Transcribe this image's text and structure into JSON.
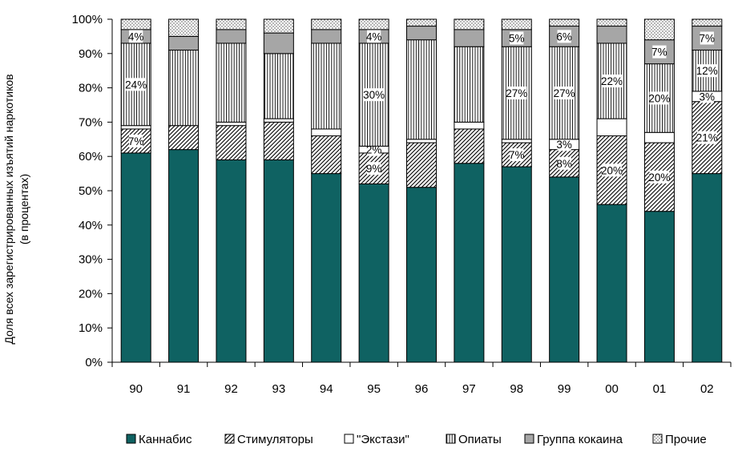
{
  "chart_data": {
    "type": "bar",
    "stacked": true,
    "ylabel_line1": "Доля всех зарегистрированных изъятий наркотиков",
    "ylabel_line2": "(в процентах)",
    "ylim": [
      0,
      100
    ],
    "yticks": [
      "0%",
      "10%",
      "20%",
      "30%",
      "40%",
      "50%",
      "60%",
      "70%",
      "80%",
      "90%",
      "100%"
    ],
    "categories": [
      "90",
      "91",
      "92",
      "93",
      "94",
      "95",
      "96",
      "97",
      "98",
      "99",
      "00",
      "01",
      "02"
    ],
    "legend_position": "bottom",
    "series": [
      {
        "name": "Каннабис",
        "pattern": "solid",
        "color": "#0f6262",
        "values": [
          61,
          62,
          59,
          59,
          55,
          52,
          51,
          58,
          57,
          54,
          46,
          44,
          55
        ],
        "labels": [
          "",
          "",
          "",
          "",
          "",
          "",
          "",
          "",
          "",
          "",
          "",
          "",
          ""
        ]
      },
      {
        "name": "Стимуляторы",
        "pattern": "diagonal",
        "values": [
          7,
          7,
          10,
          11,
          11,
          9,
          13,
          10,
          7,
          8,
          20,
          20,
          21
        ],
        "labels": [
          "7%",
          "",
          "",
          "",
          "",
          "9%",
          "",
          "",
          "7%",
          "8%",
          "20%",
          "20%",
          "21%"
        ]
      },
      {
        "name": "\"Экстази\"",
        "pattern": "white",
        "values": [
          1,
          0,
          1,
          1,
          2,
          2,
          1,
          2,
          1,
          3,
          5,
          3,
          3
        ],
        "labels": [
          "",
          "",
          "",
          "",
          "",
          "2%",
          "",
          "",
          "",
          "3%",
          "",
          "",
          "3%"
        ]
      },
      {
        "name": "Опиаты",
        "pattern": "vertical",
        "values": [
          24,
          22,
          23,
          19,
          25,
          30,
          29,
          22,
          27,
          27,
          22,
          20,
          12
        ],
        "labels": [
          "24%",
          "",
          "",
          "",
          "",
          "30%",
          "",
          "",
          "27%",
          "27%",
          "22%",
          "20%",
          "12%"
        ]
      },
      {
        "name": "Группа кокаина",
        "pattern": "gray",
        "color": "#a6a6a6",
        "values": [
          4,
          4,
          4,
          6,
          4,
          4,
          4,
          5,
          5,
          6,
          5,
          7,
          7
        ],
        "labels": [
          "4%",
          "",
          "",
          "",
          "",
          "4%",
          "",
          "",
          "5%",
          "6%",
          "",
          "7%",
          "7%"
        ]
      },
      {
        "name": "Прочие",
        "pattern": "dots",
        "values": [
          3,
          5,
          3,
          4,
          3,
          3,
          2,
          3,
          3,
          2,
          2,
          6,
          2
        ],
        "labels": [
          "",
          "",
          "",
          "",
          "",
          "",
          "",
          "",
          "",
          "",
          "",
          "",
          ""
        ]
      }
    ]
  }
}
